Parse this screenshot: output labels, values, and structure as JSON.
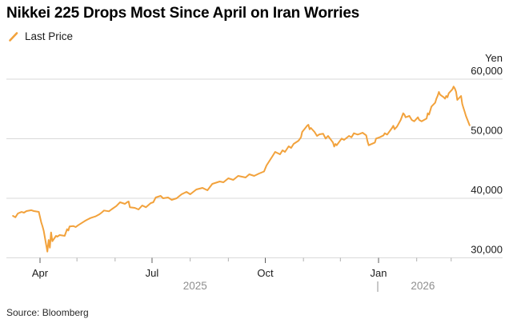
{
  "header": {
    "title": "Nikkei 225 Drops Most Since April on Iran Worries"
  },
  "legend": {
    "label": "Last Price",
    "marker": "slash-icon",
    "color": "#F2A23C"
  },
  "footer": {
    "source": "Source: Bloomberg"
  },
  "colors": {
    "line": "#F2A23C",
    "grid": "#d9d9d9",
    "axis_text": "#1b1b1b",
    "year_text": "#8f8f8f",
    "tick_minor": "#b0b0b0",
    "tick_major": "#5c5c5c",
    "year_separator": "#9a9a9a"
  },
  "chart_data": {
    "type": "line",
    "title": "Nikkei 225 Drops Most Since April on Iran Worries",
    "unit_label": "Yen",
    "ylabel": "Yen",
    "ylim": [
      30000,
      60000
    ],
    "grid": "horizontal",
    "legend_position": "top-left",
    "y_ticks": [
      {
        "value": 60000,
        "label": "60,000"
      },
      {
        "value": 50000,
        "label": "50,000"
      },
      {
        "value": 40000,
        "label": "40,000"
      },
      {
        "value": 30000,
        "label": "30,000"
      }
    ],
    "x_range": [
      "2025-03-10",
      "2026-03-16"
    ],
    "x_axis": {
      "month_ticks": [
        {
          "date": "2025-04-01",
          "label": "Apr"
        },
        {
          "date": "2025-05-01"
        },
        {
          "date": "2025-06-01"
        },
        {
          "date": "2025-07-01",
          "label": "Jul"
        },
        {
          "date": "2025-08-01"
        },
        {
          "date": "2025-09-01"
        },
        {
          "date": "2025-10-01",
          "label": "Oct"
        },
        {
          "date": "2025-11-01"
        },
        {
          "date": "2025-12-01"
        },
        {
          "date": "2026-01-01",
          "label": "Jan"
        },
        {
          "date": "2026-02-01"
        },
        {
          "date": "2026-03-01"
        }
      ],
      "year_labels": [
        {
          "label": "2025",
          "center_date": "2025-08-05"
        },
        {
          "label": "2026",
          "center_date": "2026-02-06"
        }
      ],
      "year_separator": {
        "glyph": "|",
        "date": "2026-01-01"
      }
    },
    "series": [
      {
        "name": "Last Price",
        "color": "#F2A23C",
        "points": [
          [
            "2025-03-10",
            37050
          ],
          [
            "2025-03-12",
            36800
          ],
          [
            "2025-03-14",
            37450
          ],
          [
            "2025-03-17",
            37700
          ],
          [
            "2025-03-19",
            37580
          ],
          [
            "2025-03-21",
            37850
          ],
          [
            "2025-03-25",
            38000
          ],
          [
            "2025-03-27",
            37850
          ],
          [
            "2025-03-31",
            37720
          ],
          [
            "2025-04-02",
            35970
          ],
          [
            "2025-04-03",
            35300
          ],
          [
            "2025-04-04",
            34550
          ],
          [
            "2025-04-07",
            31050
          ],
          [
            "2025-04-08",
            33010
          ],
          [
            "2025-04-09",
            31710
          ],
          [
            "2025-04-10",
            34270
          ],
          [
            "2025-04-11",
            32790
          ],
          [
            "2025-04-14",
            33690
          ],
          [
            "2025-04-15",
            33560
          ],
          [
            "2025-04-17",
            33830
          ],
          [
            "2025-04-21",
            33690
          ],
          [
            "2025-04-23",
            34800
          ],
          [
            "2025-04-24",
            34590
          ],
          [
            "2025-04-25",
            35260
          ],
          [
            "2025-04-28",
            35340
          ],
          [
            "2025-04-30",
            35170
          ],
          [
            "2025-05-02",
            35470
          ],
          [
            "2025-05-07",
            36140
          ],
          [
            "2025-05-09",
            36380
          ],
          [
            "2025-05-12",
            36680
          ],
          [
            "2025-05-14",
            36820
          ],
          [
            "2025-05-16",
            36950
          ],
          [
            "2025-05-19",
            37270
          ],
          [
            "2025-05-21",
            37580
          ],
          [
            "2025-05-23",
            37940
          ],
          [
            "2025-05-27",
            37810
          ],
          [
            "2025-05-29",
            38120
          ],
          [
            "2025-06-02",
            38700
          ],
          [
            "2025-06-05",
            39330
          ],
          [
            "2025-06-09",
            39060
          ],
          [
            "2025-06-11",
            39370
          ],
          [
            "2025-06-12",
            39460
          ],
          [
            "2025-06-13",
            38500
          ],
          [
            "2025-06-17",
            38390
          ],
          [
            "2025-06-20",
            38120
          ],
          [
            "2025-06-23",
            38790
          ],
          [
            "2025-06-26",
            38500
          ],
          [
            "2025-06-30",
            39200
          ],
          [
            "2025-07-02",
            39330
          ],
          [
            "2025-07-04",
            40130
          ],
          [
            "2025-07-08",
            40400
          ],
          [
            "2025-07-10",
            40000
          ],
          [
            "2025-07-14",
            40130
          ],
          [
            "2025-07-17",
            39730
          ],
          [
            "2025-07-21",
            40000
          ],
          [
            "2025-07-25",
            40670
          ],
          [
            "2025-07-29",
            41070
          ],
          [
            "2025-08-01",
            40670
          ],
          [
            "2025-08-06",
            41470
          ],
          [
            "2025-08-11",
            41740
          ],
          [
            "2025-08-15",
            41340
          ],
          [
            "2025-08-19",
            42420
          ],
          [
            "2025-08-25",
            42820
          ],
          [
            "2025-08-28",
            42690
          ],
          [
            "2025-09-01",
            43360
          ],
          [
            "2025-09-05",
            43090
          ],
          [
            "2025-09-09",
            43760
          ],
          [
            "2025-09-15",
            43490
          ],
          [
            "2025-09-18",
            44030
          ],
          [
            "2025-09-22",
            43760
          ],
          [
            "2025-09-26",
            44160
          ],
          [
            "2025-09-30",
            44500
          ],
          [
            "2025-10-02",
            45500
          ],
          [
            "2025-10-07",
            47110
          ],
          [
            "2025-10-09",
            47790
          ],
          [
            "2025-10-13",
            47380
          ],
          [
            "2025-10-15",
            48050
          ],
          [
            "2025-10-17",
            47790
          ],
          [
            "2025-10-20",
            48730
          ],
          [
            "2025-10-22",
            48460
          ],
          [
            "2025-10-24",
            49130
          ],
          [
            "2025-10-28",
            49670
          ],
          [
            "2025-10-30",
            50240
          ],
          [
            "2025-10-31",
            51140
          ],
          [
            "2025-11-04",
            52180
          ],
          [
            "2025-11-05",
            52350
          ],
          [
            "2025-11-06",
            51590
          ],
          [
            "2025-11-07",
            51810
          ],
          [
            "2025-11-10",
            51140
          ],
          [
            "2025-11-12",
            50470
          ],
          [
            "2025-11-14",
            50740
          ],
          [
            "2025-11-17",
            50830
          ],
          [
            "2025-11-19",
            50030
          ],
          [
            "2025-11-21",
            50470
          ],
          [
            "2025-11-25",
            49360
          ],
          [
            "2025-11-26",
            48680
          ],
          [
            "2025-11-27",
            49130
          ],
          [
            "2025-11-28",
            48900
          ],
          [
            "2025-12-02",
            50030
          ],
          [
            "2025-12-04",
            49800
          ],
          [
            "2025-12-08",
            50470
          ],
          [
            "2025-12-10",
            50240
          ],
          [
            "2025-12-12",
            50910
          ],
          [
            "2025-12-15",
            50700
          ],
          [
            "2025-12-17",
            50830
          ],
          [
            "2025-12-19",
            51010
          ],
          [
            "2025-12-22",
            50560
          ],
          [
            "2025-12-23",
            49570
          ],
          [
            "2025-12-24",
            48900
          ],
          [
            "2025-12-29",
            49360
          ],
          [
            "2025-12-30",
            50030
          ],
          [
            "2026-01-02",
            50240
          ],
          [
            "2026-01-05",
            50560
          ],
          [
            "2026-01-06",
            50910
          ],
          [
            "2026-01-08",
            50700
          ],
          [
            "2026-01-12",
            51810
          ],
          [
            "2026-01-13",
            52180
          ],
          [
            "2026-01-14",
            51590
          ],
          [
            "2026-01-16",
            52040
          ],
          [
            "2026-01-19",
            53150
          ],
          [
            "2026-01-21",
            54270
          ],
          [
            "2026-01-22",
            54050
          ],
          [
            "2026-01-23",
            53600
          ],
          [
            "2026-01-26",
            53820
          ],
          [
            "2026-01-28",
            53150
          ],
          [
            "2026-01-30",
            52930
          ],
          [
            "2026-02-02",
            53600
          ],
          [
            "2026-02-03",
            53150
          ],
          [
            "2026-02-05",
            52930
          ],
          [
            "2026-02-09",
            53380
          ],
          [
            "2026-02-10",
            54270
          ],
          [
            "2026-02-11",
            54050
          ],
          [
            "2026-02-12",
            54720
          ],
          [
            "2026-02-13",
            55390
          ],
          [
            "2026-02-16",
            56060
          ],
          [
            "2026-02-17",
            56730
          ],
          [
            "2026-02-18",
            57180
          ],
          [
            "2026-02-19",
            57850
          ],
          [
            "2026-02-20",
            57400
          ],
          [
            "2026-02-23",
            56950
          ],
          [
            "2026-02-24",
            56730
          ],
          [
            "2026-02-25",
            57180
          ],
          [
            "2026-02-26",
            56950
          ],
          [
            "2026-02-27",
            57620
          ],
          [
            "2026-03-02",
            58290
          ],
          [
            "2026-03-03",
            58750
          ],
          [
            "2026-03-04",
            58400
          ],
          [
            "2026-03-05",
            57850
          ],
          [
            "2026-03-06",
            56510
          ],
          [
            "2026-03-09",
            57180
          ],
          [
            "2026-03-10",
            55840
          ],
          [
            "2026-03-11",
            55170
          ],
          [
            "2026-03-12",
            54500
          ],
          [
            "2026-03-13",
            53830
          ],
          [
            "2026-03-16",
            52260
          ]
        ]
      }
    ]
  }
}
